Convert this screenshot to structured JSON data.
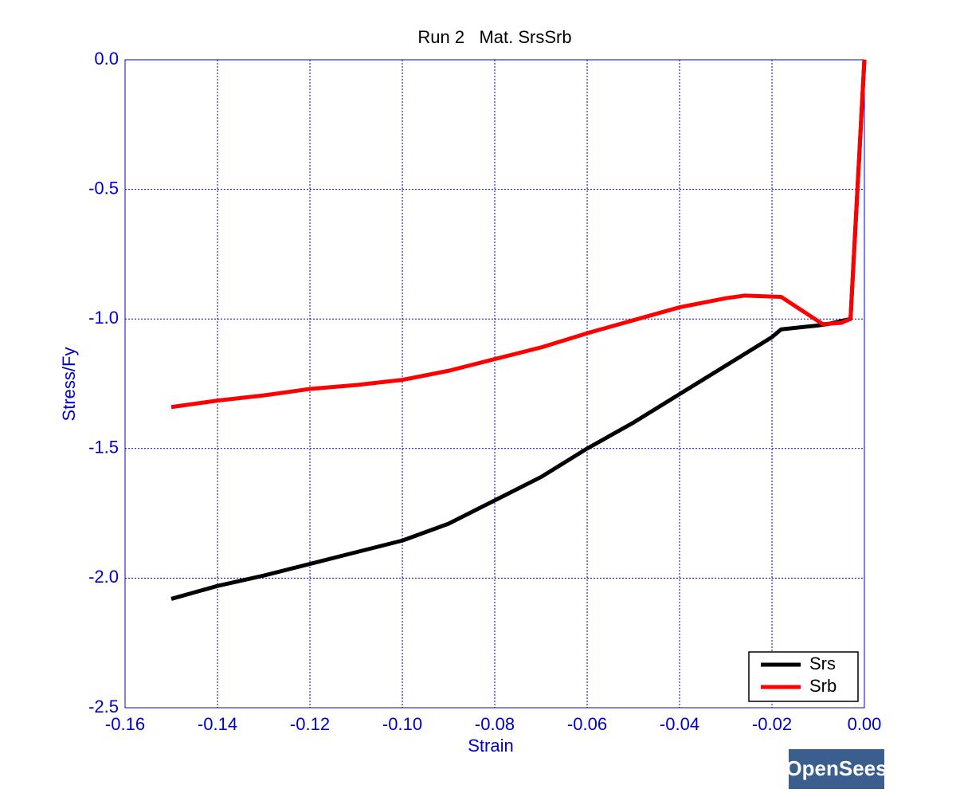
{
  "chart_data": {
    "type": "line",
    "title": "Run 2   Mat. SrsSrb",
    "x_label": "Strain",
    "y_label": "Stress/Fy",
    "xlim": [
      -0.16,
      0.0
    ],
    "ylim": [
      -2.5,
      0.0
    ],
    "xticks": [
      {
        "value": -0.16,
        "label": "-0.16"
      },
      {
        "value": -0.14,
        "label": "-0.14"
      },
      {
        "value": -0.12,
        "label": "-0.12"
      },
      {
        "value": -0.1,
        "label": "-0.10"
      },
      {
        "value": -0.08,
        "label": "-0.08"
      },
      {
        "value": -0.06,
        "label": "-0.06"
      },
      {
        "value": -0.04,
        "label": "-0.04"
      },
      {
        "value": -0.02,
        "label": "-0.02"
      },
      {
        "value": 0.0,
        "label": "0.00"
      }
    ],
    "yticks": [
      {
        "value": 0.0,
        "label": "0.0"
      },
      {
        "value": -0.5,
        "label": "-0.5"
      },
      {
        "value": -1.0,
        "label": "-1.0"
      },
      {
        "value": -1.5,
        "label": "-1.5"
      },
      {
        "value": -2.0,
        "label": "-2.0"
      },
      {
        "value": -2.5,
        "label": "-2.5"
      }
    ],
    "grid": true,
    "legend": "lower right",
    "series": [
      {
        "name": "Srs",
        "color": "#000000",
        "x": [
          -0.15,
          -0.14,
          -0.13,
          -0.12,
          -0.11,
          -0.1,
          -0.09,
          -0.08,
          -0.07,
          -0.06,
          -0.05,
          -0.04,
          -0.03,
          -0.02,
          -0.018,
          -0.01,
          -0.008,
          -0.003,
          0.0
        ],
        "values": [
          -2.08,
          -2.03,
          -1.99,
          -1.945,
          -1.9,
          -1.855,
          -1.79,
          -1.7,
          -1.61,
          -1.5,
          -1.4,
          -1.29,
          -1.18,
          -1.07,
          -1.04,
          -1.025,
          -1.02,
          -1.0,
          0.0
        ]
      },
      {
        "name": "Srb",
        "color": "#ff0000",
        "x": [
          -0.15,
          -0.14,
          -0.13,
          -0.12,
          -0.11,
          -0.1,
          -0.09,
          -0.08,
          -0.07,
          -0.06,
          -0.05,
          -0.04,
          -0.03,
          -0.026,
          -0.018,
          -0.009,
          -0.005,
          -0.003,
          0.0
        ],
        "values": [
          -1.34,
          -1.315,
          -1.295,
          -1.27,
          -1.255,
          -1.235,
          -1.2,
          -1.155,
          -1.11,
          -1.055,
          -1.005,
          -0.955,
          -0.92,
          -0.91,
          -0.915,
          -1.02,
          -1.015,
          -1.0,
          0.0
        ]
      }
    ],
    "logo": "OpenSees"
  }
}
